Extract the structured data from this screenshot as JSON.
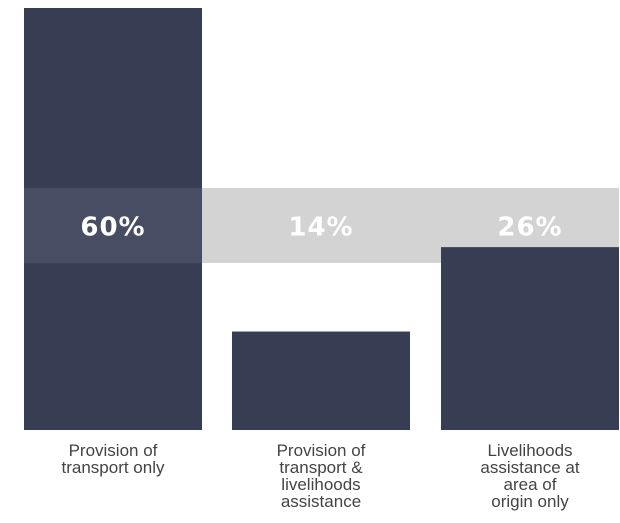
{
  "chart_data": {
    "type": "bar",
    "categories": [
      [
        "Provision of",
        "transport only"
      ],
      [
        "Provision of",
        "transport &",
        "livelihoods",
        "assistance"
      ],
      [
        "Livelihoods",
        "assistance at",
        "area of",
        "origin only"
      ]
    ],
    "values": [
      60,
      14,
      26
    ],
    "value_labels": [
      "60%",
      "14%",
      "26%"
    ],
    "title": "",
    "xlabel": "",
    "ylabel": "",
    "ylim": [
      0,
      60
    ],
    "grid": false,
    "legend": "none"
  },
  "colors": {
    "bar": "#373e54",
    "band_dark": "#474d63",
    "band_light": "#d2d3d2",
    "label_on_dark": "#ffffff",
    "label_on_light": "#ffffff",
    "category_text": "#444444"
  }
}
